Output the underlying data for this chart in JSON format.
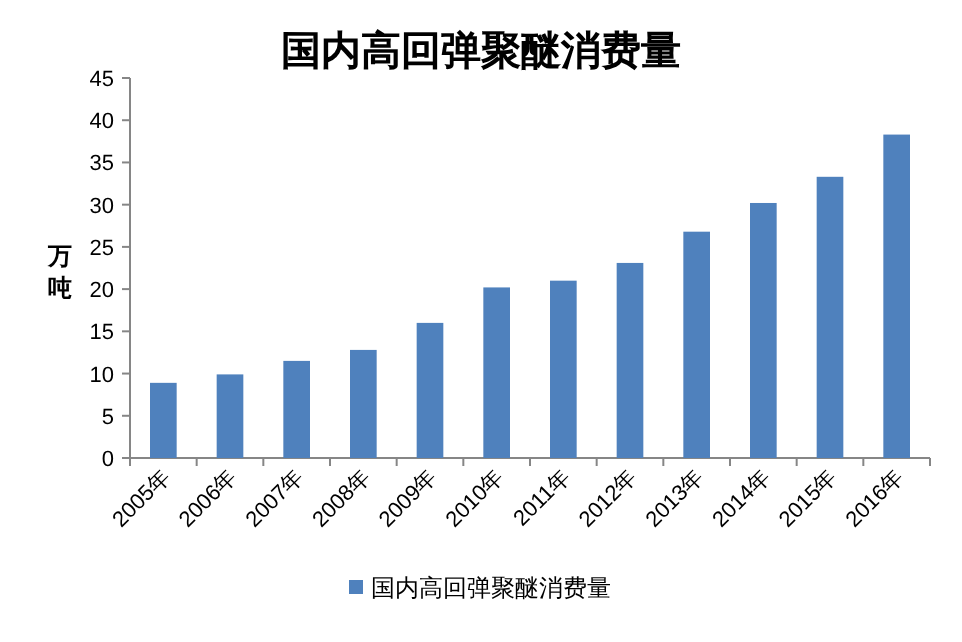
{
  "chart_data": {
    "type": "bar",
    "title": "国内高回弹聚醚消费量",
    "ylabel": "万吨",
    "categories": [
      "2005年",
      "2006年",
      "2007年",
      "2008年",
      "2009年",
      "2010年",
      "2011年",
      "2012年",
      "2013年",
      "2014年",
      "2015年",
      "2016年"
    ],
    "series": [
      {
        "name": "国内高回弹聚醚消费量",
        "color": "#4f81bd",
        "values": [
          8.9,
          9.9,
          11.5,
          12.8,
          16.0,
          20.2,
          21.0,
          23.1,
          26.8,
          30.2,
          33.3,
          38.3
        ]
      }
    ],
    "ylim": [
      0,
      45
    ],
    "yticks": [
      0,
      5,
      10,
      15,
      20,
      25,
      30,
      35,
      40,
      45
    ],
    "grid": false,
    "legend": "bottom"
  }
}
